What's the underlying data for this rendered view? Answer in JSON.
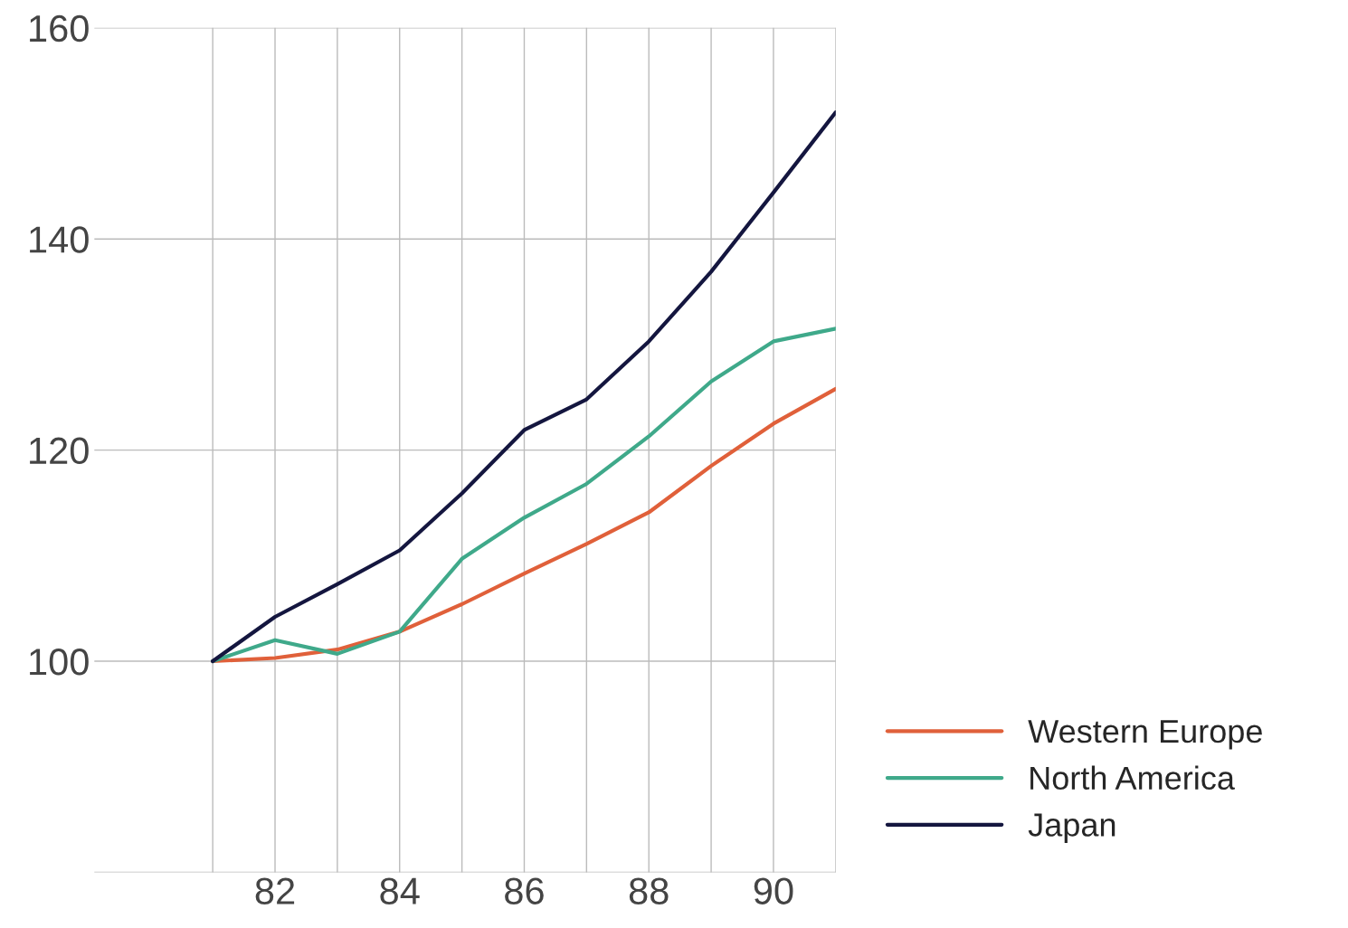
{
  "chart_data": {
    "type": "line",
    "x": [
      81,
      82,
      83,
      84,
      85,
      86,
      87,
      88,
      89,
      90,
      91
    ],
    "series": [
      {
        "name": "Western Europe",
        "color": "#e0603a",
        "values": [
          100,
          100.3,
          101.1,
          102.8,
          105.4,
          108.3,
          111.1,
          114.1,
          118.5,
          122.5,
          125.8
        ]
      },
      {
        "name": "North America",
        "color": "#3fa98a",
        "values": [
          100,
          102,
          100.7,
          102.8,
          109.7,
          113.6,
          116.8,
          121.3,
          126.5,
          130.3,
          131.5
        ]
      },
      {
        "name": "Japan",
        "color": "#14163f",
        "values": [
          100,
          104.2,
          107.3,
          110.5,
          115.9,
          121.9,
          124.8,
          130.3,
          136.9,
          144.4,
          152
        ]
      }
    ],
    "xlim": [
      79.1,
      91
    ],
    "xticks": [
      {
        "value": 81,
        "label": null
      },
      82,
      {
        "value": 83,
        "label": null
      },
      84,
      {
        "value": 85,
        "label": null
      },
      86,
      {
        "value": 87,
        "label": null
      },
      88,
      {
        "value": 89,
        "label": null
      },
      90,
      {
        "value": 91,
        "label": null
      }
    ],
    "ylim": [
      80,
      160
    ],
    "yticks": [
      {
        "value": 80,
        "label": null
      },
      100,
      120,
      140,
      160
    ],
    "grid": true,
    "legend": "bottom right",
    "line_style": "solid",
    "marker": "none"
  }
}
